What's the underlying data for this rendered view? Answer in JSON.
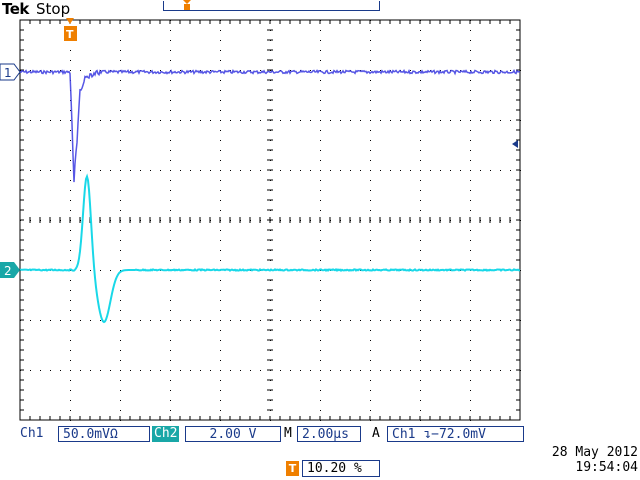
{
  "header": {
    "brand": "Tek",
    "run_state": "Stop",
    "trigger_marker": "T"
  },
  "channels": {
    "ch1": {
      "marker": "1",
      "color": "#3a3ae0"
    },
    "ch2": {
      "marker": "2",
      "color": "#19c6d8"
    }
  },
  "status": {
    "ch1_label": "Ch1",
    "ch1_scale": "50.0mVΩ",
    "ch2_label": "Ch2",
    "ch2_scale": "2.00 V",
    "timebase_label": "M",
    "timebase": "2.00µs",
    "trigger_mode": "A",
    "trigger_source": "Ch1",
    "trigger_level": "ʺ−−72.0mV"
  },
  "footer": {
    "date": "28 May 2012",
    "time": "19:54:04",
    "trigger_position_icon": "T",
    "trigger_position": "10.20 %"
  },
  "colors": {
    "grid": "#000000",
    "frame": "#000000",
    "accent": "#ef7f00"
  }
}
